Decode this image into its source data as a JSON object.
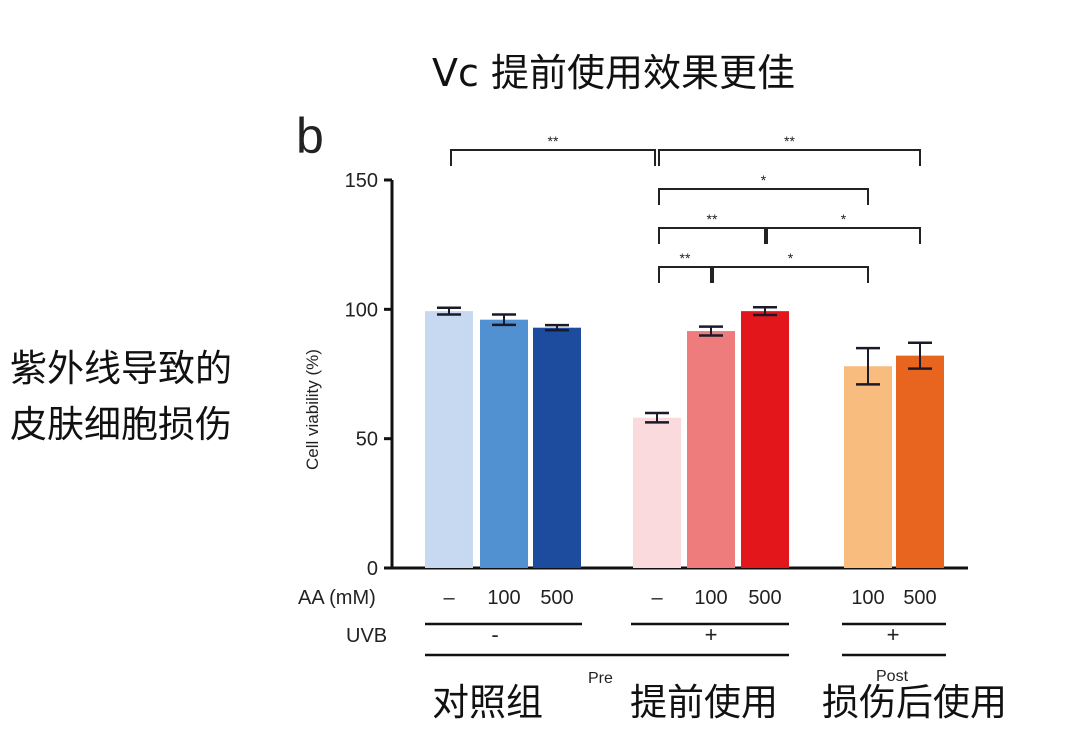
{
  "title": "Vc 提前使用效果更佳",
  "panel_label": "b",
  "side_annotation": [
    "紫外线导致的",
    "皮肤细胞损伤"
  ],
  "chart_data": {
    "type": "bar",
    "ylabel": "Cell viability (%)",
    "ylim": [
      0,
      150
    ],
    "yticks": [
      "0",
      "50",
      "100",
      "150"
    ],
    "grid": false,
    "categories": [
      "1",
      "2",
      "3",
      "4",
      "5",
      "6",
      "7",
      "8"
    ],
    "values": [
      99.3,
      96,
      92.9,
      58.1,
      91.6,
      99.3,
      78,
      82.1
    ],
    "errors": [
      1.3,
      2,
      1,
      1.8,
      1.7,
      1.5,
      7,
      5
    ],
    "colors": [
      "#c6d9f0",
      "#5191d1",
      "#1d4c9e",
      "#fadadc",
      "#ee7c7c",
      "#e3161b",
      "#f8bd7e",
      "#e8651f"
    ],
    "significance": [
      {
        "from": 1,
        "to": 4,
        "label": "**",
        "tier": 4
      },
      {
        "from": 4,
        "to": 8,
        "label": "**",
        "tier": 4
      },
      {
        "from": 4,
        "to": 7,
        "label": "*",
        "tier": 3
      },
      {
        "from": 4,
        "to": 6,
        "label": "**",
        "tier": 2
      },
      {
        "from": 6,
        "to": 8,
        "label": "*",
        "tier": 2
      },
      {
        "from": 4,
        "to": 5,
        "label": "**",
        "tier": 1
      },
      {
        "from": 5,
        "to": 7,
        "label": "*",
        "tier": 1
      }
    ],
    "rows": {
      "aa_label": "AA (mM)",
      "aa_values": [
        "-",
        "100",
        "500",
        "-",
        "100",
        "500",
        "100",
        "500"
      ],
      "uvb_label": "UVB",
      "uvb_values": [
        "-",
        "+",
        "+"
      ],
      "pre_label": "Pre",
      "post_label": "Post"
    },
    "group_labels": [
      "对照组",
      "提前使用",
      "损伤后使用"
    ]
  }
}
